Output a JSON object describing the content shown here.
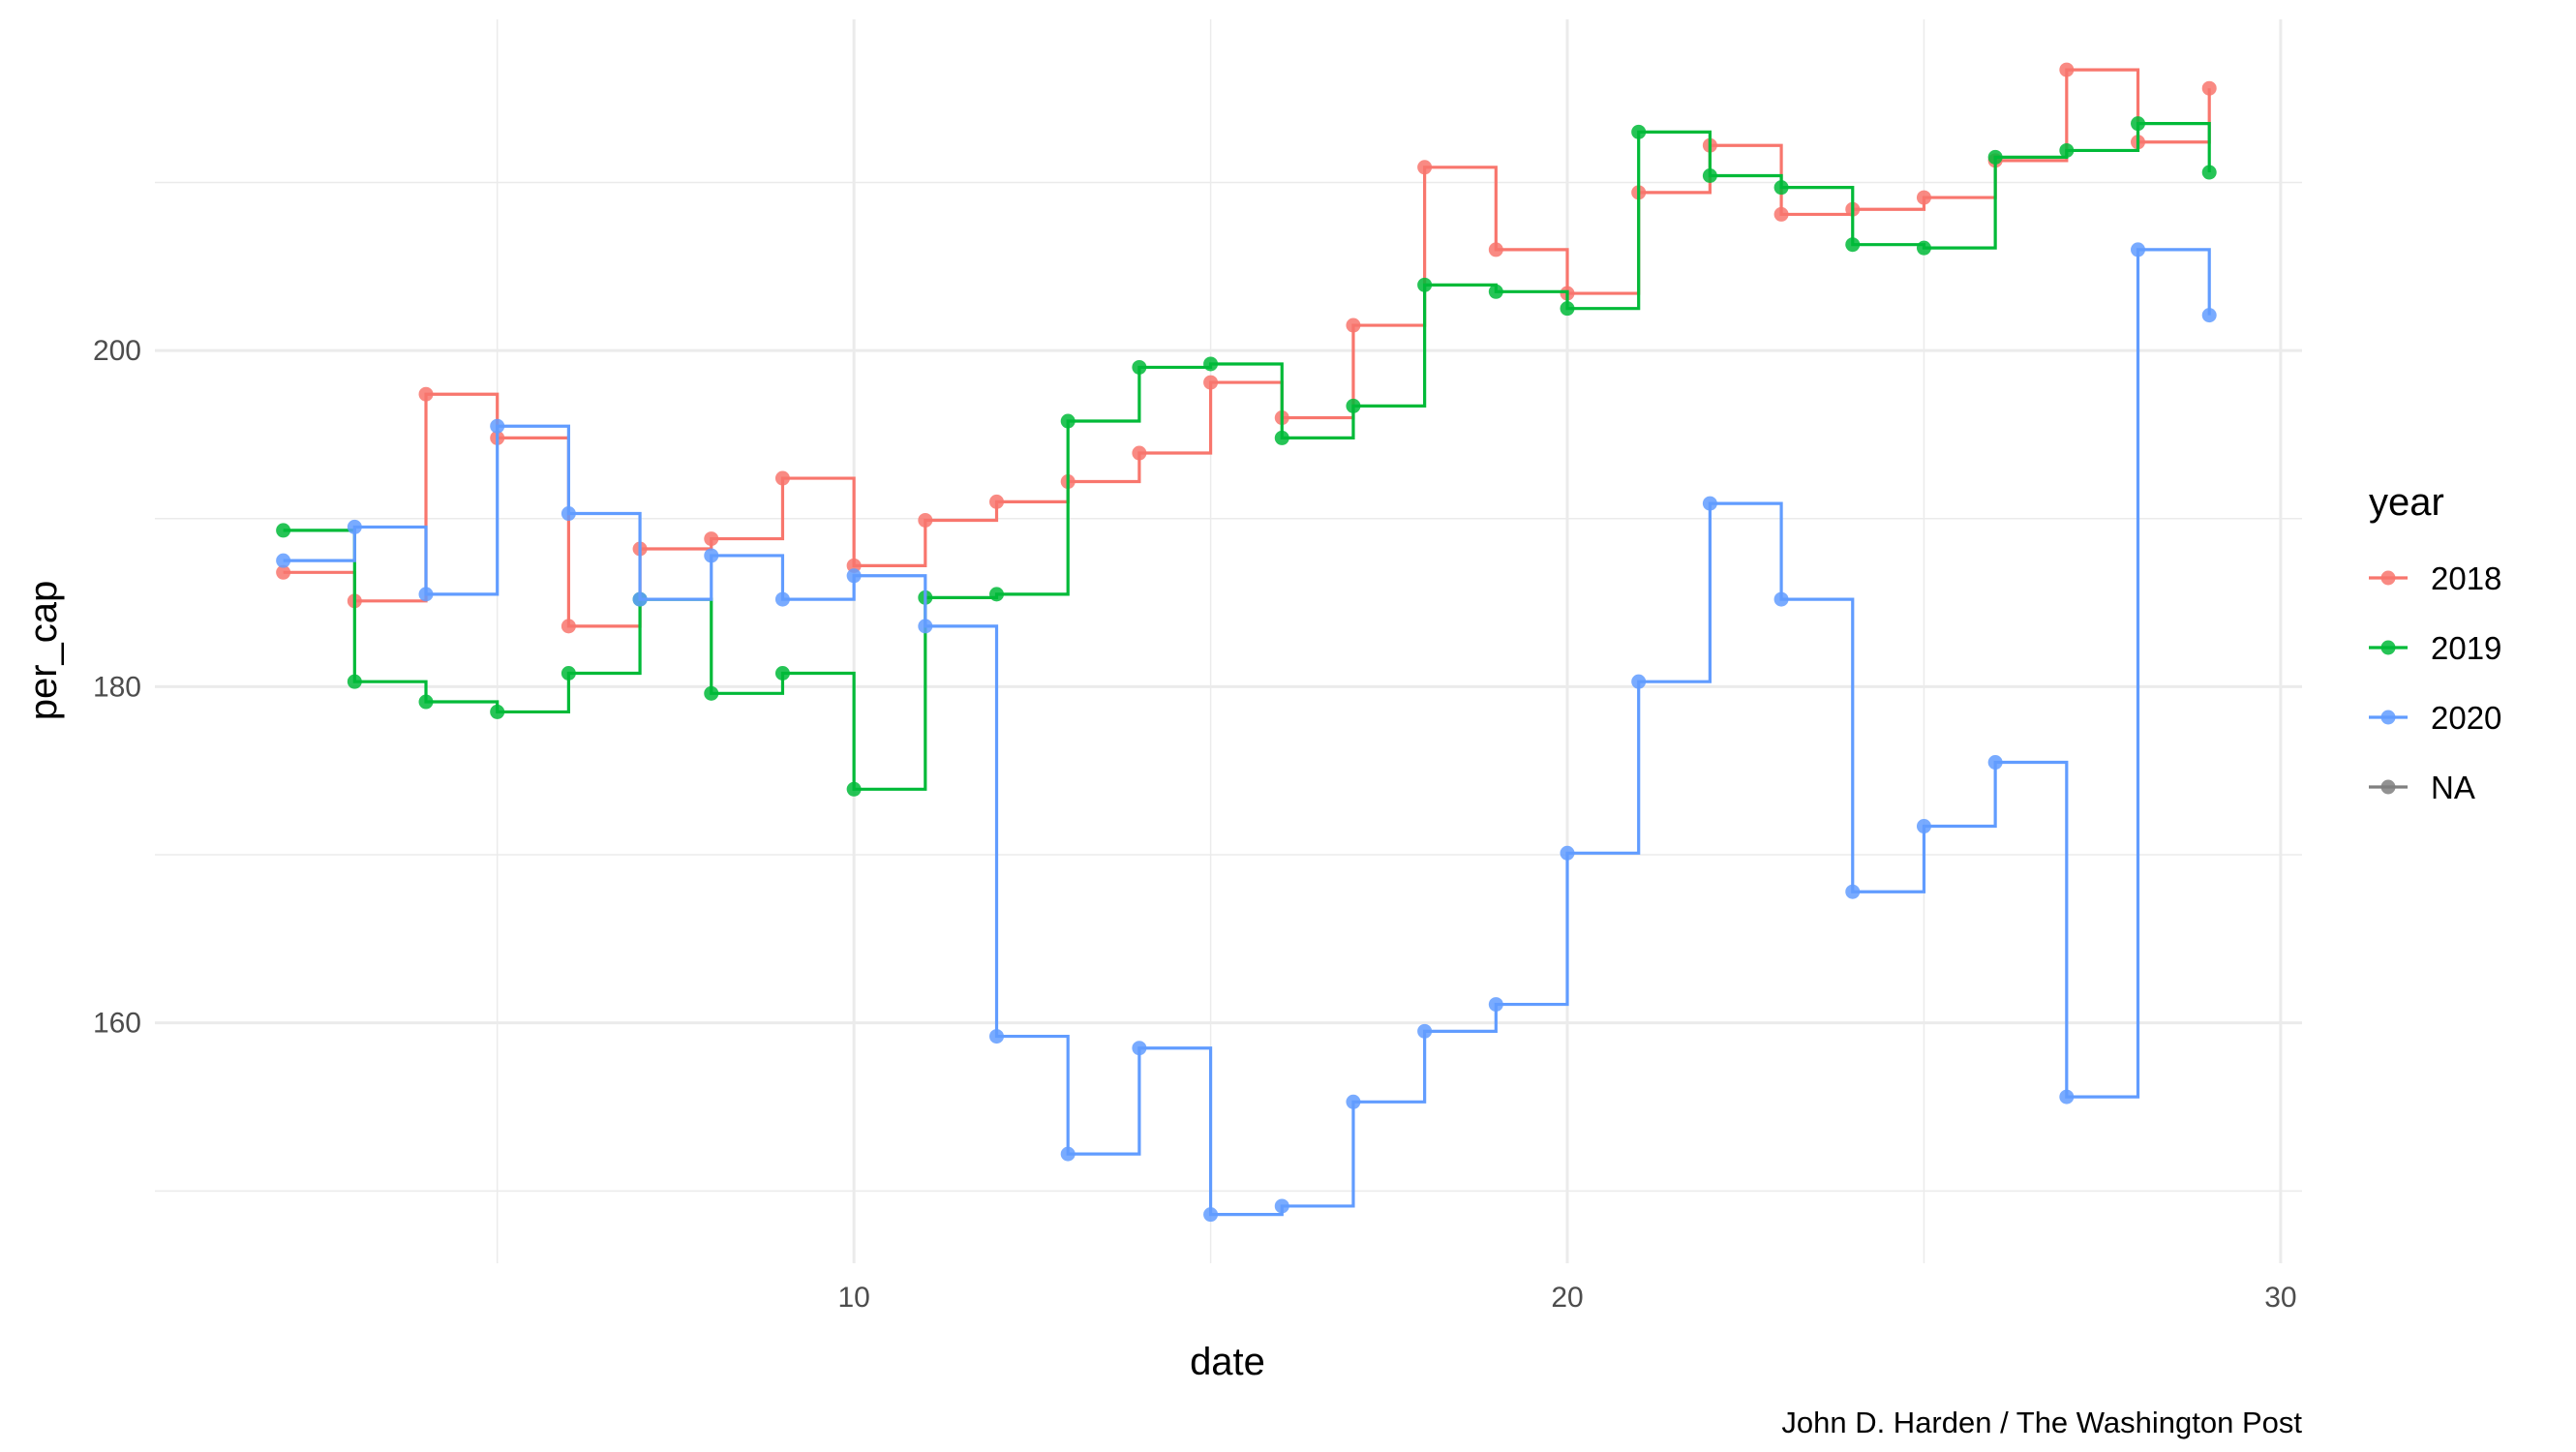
{
  "chart_data": {
    "type": "line",
    "xlabel": "date",
    "ylabel": "per_cap",
    "caption": "John D. Harden / The Washington Post",
    "xlim": [
      0.2,
      30.3
    ],
    "ylim": [
      145.7,
      219.7
    ],
    "x_ticks": [
      10,
      20,
      30
    ],
    "x_tick_labels": [
      "10",
      "20",
      "30"
    ],
    "y_ticks": [
      160,
      180,
      200
    ],
    "y_tick_labels": [
      "160",
      "180",
      "200"
    ],
    "grid": true,
    "step": "hv",
    "legend": {
      "title": "year",
      "position": "right",
      "items": [
        {
          "label": "2018",
          "color": "#F8766D"
        },
        {
          "label": "2019",
          "color": "#00BA38"
        },
        {
          "label": "2020",
          "color": "#619CFF"
        },
        {
          "label": "NA",
          "color": "#7F7F7F"
        }
      ]
    },
    "series": [
      {
        "name": "2018",
        "color": "#F8766D",
        "x": [
          2,
          3,
          4,
          5,
          6,
          7,
          8,
          9,
          10,
          11,
          12,
          13,
          14,
          15,
          16,
          17,
          18,
          19,
          20,
          21,
          22,
          23,
          24,
          25,
          26,
          27,
          28,
          29
        ],
        "y": [
          186.8,
          185.1,
          197.4,
          194.8,
          183.6,
          188.2,
          188.8,
          192.4,
          187.2,
          189.9,
          191.0,
          192.2,
          193.9,
          198.1,
          196.0,
          201.5,
          210.9,
          206.0,
          203.4,
          209.4,
          212.2,
          208.1,
          208.4,
          209.1,
          211.3,
          216.7,
          212.4,
          215.6
        ]
      },
      {
        "name": "2019",
        "color": "#00BA38",
        "x": [
          2,
          3,
          4,
          5,
          6,
          7,
          8,
          9,
          10,
          11,
          12,
          13,
          14,
          15,
          16,
          17,
          18,
          19,
          20,
          21,
          22,
          23,
          24,
          25,
          26,
          27,
          28,
          29
        ],
        "y": [
          189.3,
          180.3,
          179.1,
          178.5,
          180.8,
          185.2,
          179.6,
          180.8,
          173.9,
          185.3,
          185.5,
          195.8,
          199.0,
          199.2,
          194.8,
          196.7,
          203.9,
          203.5,
          202.5,
          213.0,
          210.4,
          209.7,
          206.3,
          206.1,
          211.5,
          211.9,
          213.5,
          210.6
        ]
      },
      {
        "name": "2020",
        "color": "#619CFF",
        "x": [
          2,
          3,
          4,
          5,
          6,
          7,
          8,
          9,
          10,
          11,
          12,
          13,
          14,
          15,
          16,
          17,
          18,
          19,
          20,
          21,
          22,
          23,
          24,
          25,
          26,
          27,
          28,
          29
        ],
        "y": [
          187.5,
          189.5,
          185.5,
          195.5,
          190.3,
          185.2,
          187.8,
          185.2,
          186.6,
          183.6,
          159.2,
          152.2,
          158.5,
          148.6,
          149.1,
          155.3,
          159.5,
          161.1,
          170.1,
          180.3,
          190.9,
          185.2,
          167.8,
          171.7,
          175.5,
          155.6,
          206.0,
          202.1
        ]
      }
    ]
  }
}
